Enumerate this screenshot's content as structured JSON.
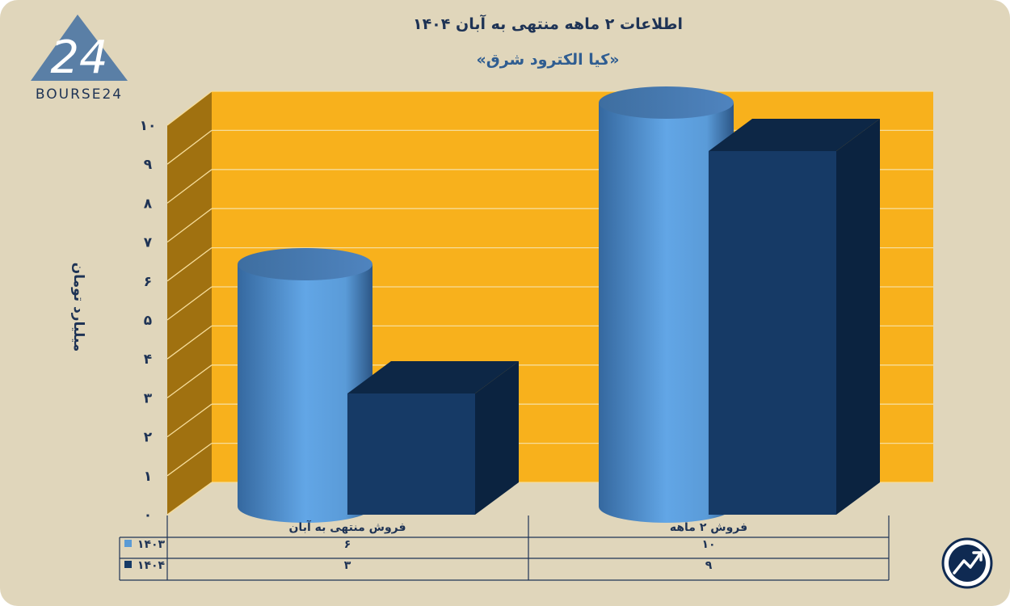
{
  "brand": {
    "logo_number": "24",
    "logo_text": "BOURSE24"
  },
  "chart_data": {
    "type": "bar",
    "title": "اطلاعات ۲ ماهه منتهی به آبان ۱۴۰۴",
    "subtitle": "«کیا الکترود شرق»",
    "ylabel": "میلیارد تومان",
    "ylim": [
      0,
      10
    ],
    "yticks": [
      "۰",
      "۱",
      "۲",
      "۳",
      "۴",
      "۵",
      "۶",
      "۷",
      "۸",
      "۹",
      "۱۰"
    ],
    "categories": [
      "فروش منتهی به  آبان",
      "فروش ۲  ماهه"
    ],
    "series": [
      {
        "name": "۱۴۰۳",
        "values": [
          6,
          10
        ],
        "value_labels": [
          "۶",
          "۱۰"
        ],
        "color": "#5b9bd5",
        "shape": "cylinder"
      },
      {
        "name": "۱۴۰۴",
        "values": [
          3,
          9
        ],
        "value_labels": [
          "۳",
          "۹"
        ],
        "color": "#163a66",
        "shape": "box"
      }
    ],
    "grid": true,
    "legend": "table-below",
    "colors": {
      "back_wall": "#f8b11c",
      "side_wall": "#a07110",
      "grid": "#f6dd9a",
      "text": "#1e3355",
      "background": "#e0d6bb"
    }
  }
}
